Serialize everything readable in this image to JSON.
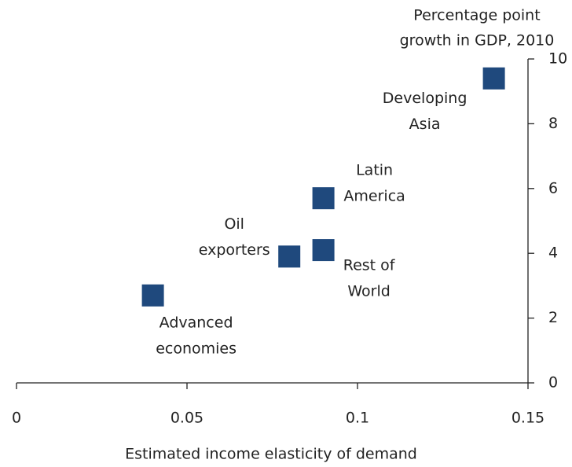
{
  "chart_data": {
    "type": "scatter",
    "y_label": [
      "Percentage point",
      "growth in GDP, 2010"
    ],
    "x_label": "Estimated income elasticity of demand",
    "point_labels": [
      [
        "Advanced",
        "economies"
      ],
      [
        "Oil",
        "exporters"
      ],
      [
        "Rest of",
        "World"
      ],
      [
        "Latin",
        "America"
      ],
      [
        "Developing",
        "Asia"
      ]
    ],
    "x": [
      0.04,
      0.08,
      0.09,
      0.09,
      0.14
    ],
    "values": [
      2.7,
      3.9,
      4.1,
      5.7,
      9.4
    ],
    "color": "#1f497d",
    "xlim": [
      0,
      0.15
    ],
    "xticks": [
      0,
      0.05,
      0.1,
      0.15
    ],
    "ylim": [
      0,
      10
    ],
    "yticks": [
      0,
      2,
      4,
      6,
      8,
      10
    ]
  }
}
